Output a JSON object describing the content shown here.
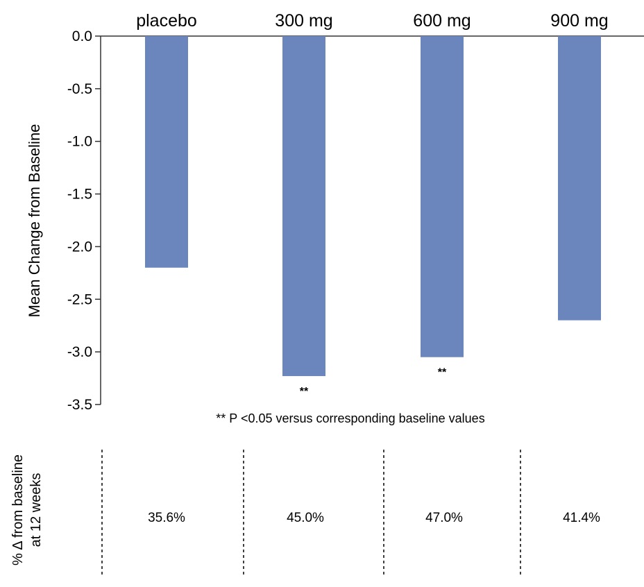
{
  "chart_data": {
    "type": "bar",
    "categories": [
      "placebo",
      "300 mg",
      "600 mg",
      "900 mg"
    ],
    "values": [
      -2.2,
      -3.23,
      -3.05,
      -2.7
    ],
    "significance": [
      "",
      "**",
      "**",
      ""
    ],
    "ylabel": "Mean Change from Baseline",
    "ylim": [
      -3.5,
      0
    ],
    "yticks": [
      "0.0",
      "-0.5",
      "-1.0",
      "-1.5",
      "-2.0",
      "-2.5",
      "-3.0",
      "-3.5"
    ],
    "bar_color": "#6a86bd",
    "category_position": "top",
    "footnote": "** P <0.05 versus corresponding baseline values",
    "grid": false
  },
  "table": {
    "row_label_line1": "% Δ from baseline",
    "row_label_line2": "at 12 weeks",
    "values": [
      "35.6%",
      "45.0%",
      "47.0%",
      "41.4%"
    ]
  }
}
